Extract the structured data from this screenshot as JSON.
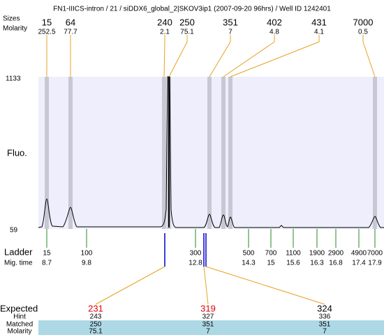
{
  "title": "FN1-IIICS-intron / 21 / siDDX6_global_2|SKOV3ip1 (2007-09-20 96hrs) / Well ID 1242401",
  "top": {
    "size_label": "Sizes",
    "molarity_label": "Molarity",
    "sizes": [
      15,
      64,
      240,
      250,
      351,
      402,
      431,
      7000
    ],
    "molarity": [
      252.5,
      77.7,
      2.1,
      75.1,
      7,
      4.8,
      4.1,
      0.5
    ]
  },
  "yaxis": {
    "label": "Fluo.",
    "max": 1133,
    "min": 59
  },
  "ladder": {
    "label": "Ladder",
    "time_label": "Mig. time",
    "sizes": [
      15,
      100,
      300,
      500,
      700,
      1100,
      1900,
      2900,
      4900,
      7000
    ],
    "times": [
      8.7,
      9.8,
      12.8,
      14.3,
      15,
      15.6,
      16.3,
      16.8,
      17.4,
      17.9
    ]
  },
  "expected": {
    "label": "Expected",
    "hint_label": "Hint",
    "matched_label": "Matched",
    "molarity_label": "Molarity",
    "expected": [
      231,
      319,
      324
    ],
    "hint": [
      243,
      327,
      336
    ],
    "matched": [
      250,
      351,
      351
    ],
    "molarity": [
      75.1,
      7,
      7
    ]
  }
}
